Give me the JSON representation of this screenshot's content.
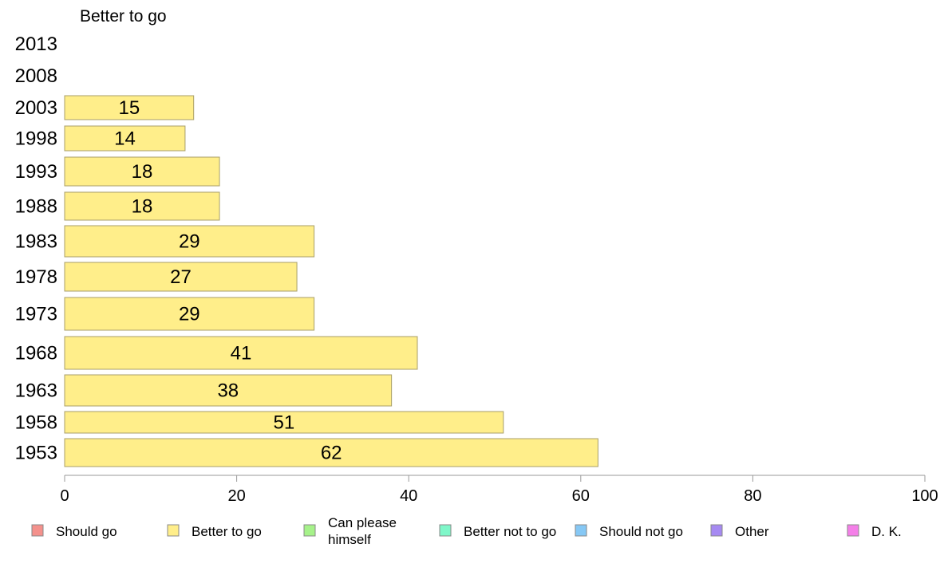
{
  "chart_data": {
    "type": "bar",
    "orientation": "horizontal",
    "title": "Better to go",
    "categories": [
      "2013",
      "2008",
      "2003",
      "1998",
      "1993",
      "1988",
      "1983",
      "1978",
      "1973",
      "1968",
      "1963",
      "1958",
      "1953"
    ],
    "series": [
      {
        "name": "Better to go",
        "color": "#FFEE8A",
        "values": [
          null,
          null,
          15,
          14,
          18,
          18,
          29,
          27,
          29,
          41,
          38,
          51,
          62
        ]
      }
    ],
    "xlim": [
      0,
      100
    ],
    "xticks": [
      0,
      20,
      40,
      60,
      80,
      100
    ],
    "grid": false,
    "legend_position": "bottom",
    "legend": [
      {
        "label": "Should go",
        "color": "#F4918C"
      },
      {
        "label": "Better to go",
        "color": "#FFEE8A"
      },
      {
        "label": "Can please himself",
        "color": "#A6F28A"
      },
      {
        "label": "Better not to go",
        "color": "#7FF7C9"
      },
      {
        "label": "Should not go",
        "color": "#86C8F5"
      },
      {
        "label": "Other",
        "color": "#A68AF2"
      },
      {
        "label": "D. K.",
        "color": "#F47FE8"
      }
    ]
  }
}
